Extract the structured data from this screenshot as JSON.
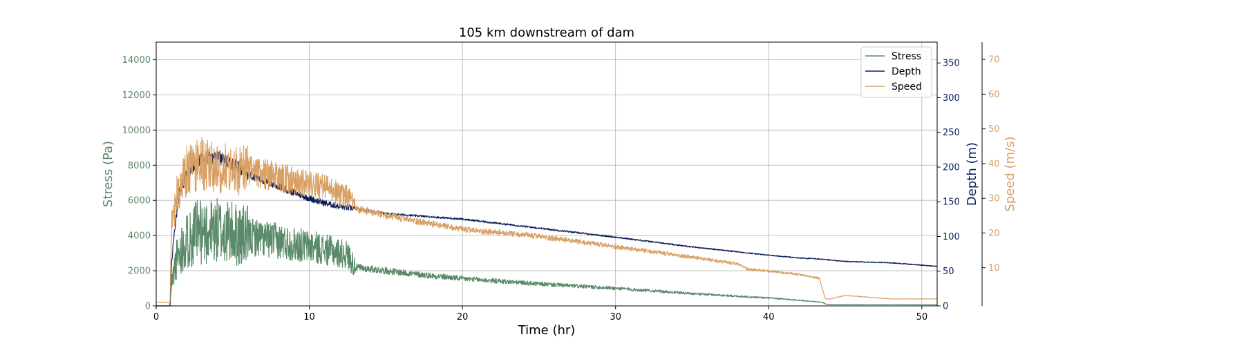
{
  "chart_data": {
    "type": "line",
    "title": "105 km downstream of dam",
    "xlabel": "Time (hr)",
    "xlim": [
      0,
      51
    ],
    "xticks": [
      0,
      10,
      20,
      30,
      40,
      50
    ],
    "grid": true,
    "legend": {
      "placement": "top-right"
    },
    "axes": {
      "stress": {
        "label": "Stress (Pa)",
        "color": "#5a8a6a",
        "lim": [
          0,
          15000
        ],
        "ticks": [
          0,
          2000,
          4000,
          6000,
          8000,
          10000,
          12000,
          14000
        ]
      },
      "depth": {
        "label": "Depth (m)",
        "color": "#0d1f5c",
        "lim": [
          0,
          380
        ],
        "ticks": [
          0,
          50,
          100,
          150,
          200,
          250,
          300,
          350
        ]
      },
      "speed": {
        "label": "Speed (m/s)",
        "color": "#d9a064",
        "lim": [
          -1,
          75
        ],
        "ticks": [
          10,
          20,
          30,
          40,
          50,
          60,
          70
        ]
      }
    },
    "series": [
      {
        "name": "Stress",
        "axis": "stress",
        "color": "#5a8a6a",
        "noise_frac": 0.28,
        "x": [
          0,
          0.9,
          1.0,
          1.3,
          1.8,
          2.5,
          3.5,
          4.5,
          5.5,
          6.5,
          7.5,
          8.5,
          9.5,
          10.5,
          11.5,
          12.5,
          13.0,
          15,
          17,
          20,
          25,
          30,
          35,
          38,
          40,
          42,
          43.5,
          43.8,
          51
        ],
        "y": [
          0,
          0,
          1200,
          2600,
          3600,
          4100,
          4300,
          4200,
          4000,
          3900,
          3750,
          3600,
          3450,
          3300,
          3100,
          2900,
          2200,
          2000,
          1800,
          1550,
          1250,
          1000,
          700,
          550,
          450,
          320,
          200,
          80,
          60
        ]
      },
      {
        "name": "Depth",
        "axis": "depth",
        "color": "#0d1f5c",
        "noise_frac": 0.03,
        "x": [
          0,
          0.9,
          1.0,
          1.2,
          1.5,
          2.0,
          2.5,
          3.0,
          3.5,
          4.0,
          4.5,
          5.0,
          6.0,
          7.0,
          8.0,
          9.0,
          10.0,
          11.0,
          12.0,
          13.0,
          15,
          20,
          25,
          30,
          35,
          40,
          42,
          43,
          45,
          48,
          51
        ],
        "y": [
          0,
          0,
          60,
          110,
          160,
          190,
          205,
          210,
          215,
          215,
          210,
          205,
          190,
          180,
          172,
          163,
          155,
          148,
          143,
          140,
          133,
          125,
          112,
          99,
          85,
          73,
          69,
          68,
          64,
          62,
          57
        ]
      },
      {
        "name": "Speed",
        "axis": "speed",
        "color": "#d9a064",
        "noise_frac": 0.12,
        "x": [
          0,
          0.9,
          1.0,
          1.3,
          2.0,
          3.0,
          4.0,
          5.0,
          6.0,
          7.0,
          8.0,
          9.0,
          10.0,
          11.0,
          12.0,
          12.6,
          13.0,
          15,
          20,
          25,
          30,
          35,
          38,
          38.7,
          40,
          42,
          43.3,
          43.7,
          44,
          45,
          48,
          51
        ],
        "y": [
          0,
          0,
          22,
          30,
          38,
          40,
          39,
          38,
          38,
          37,
          36,
          35,
          34,
          33,
          31,
          30,
          27,
          25,
          21,
          19,
          16,
          13,
          11,
          9.5,
          9,
          8,
          7,
          1,
          1,
          2,
          1,
          1
        ]
      }
    ]
  }
}
